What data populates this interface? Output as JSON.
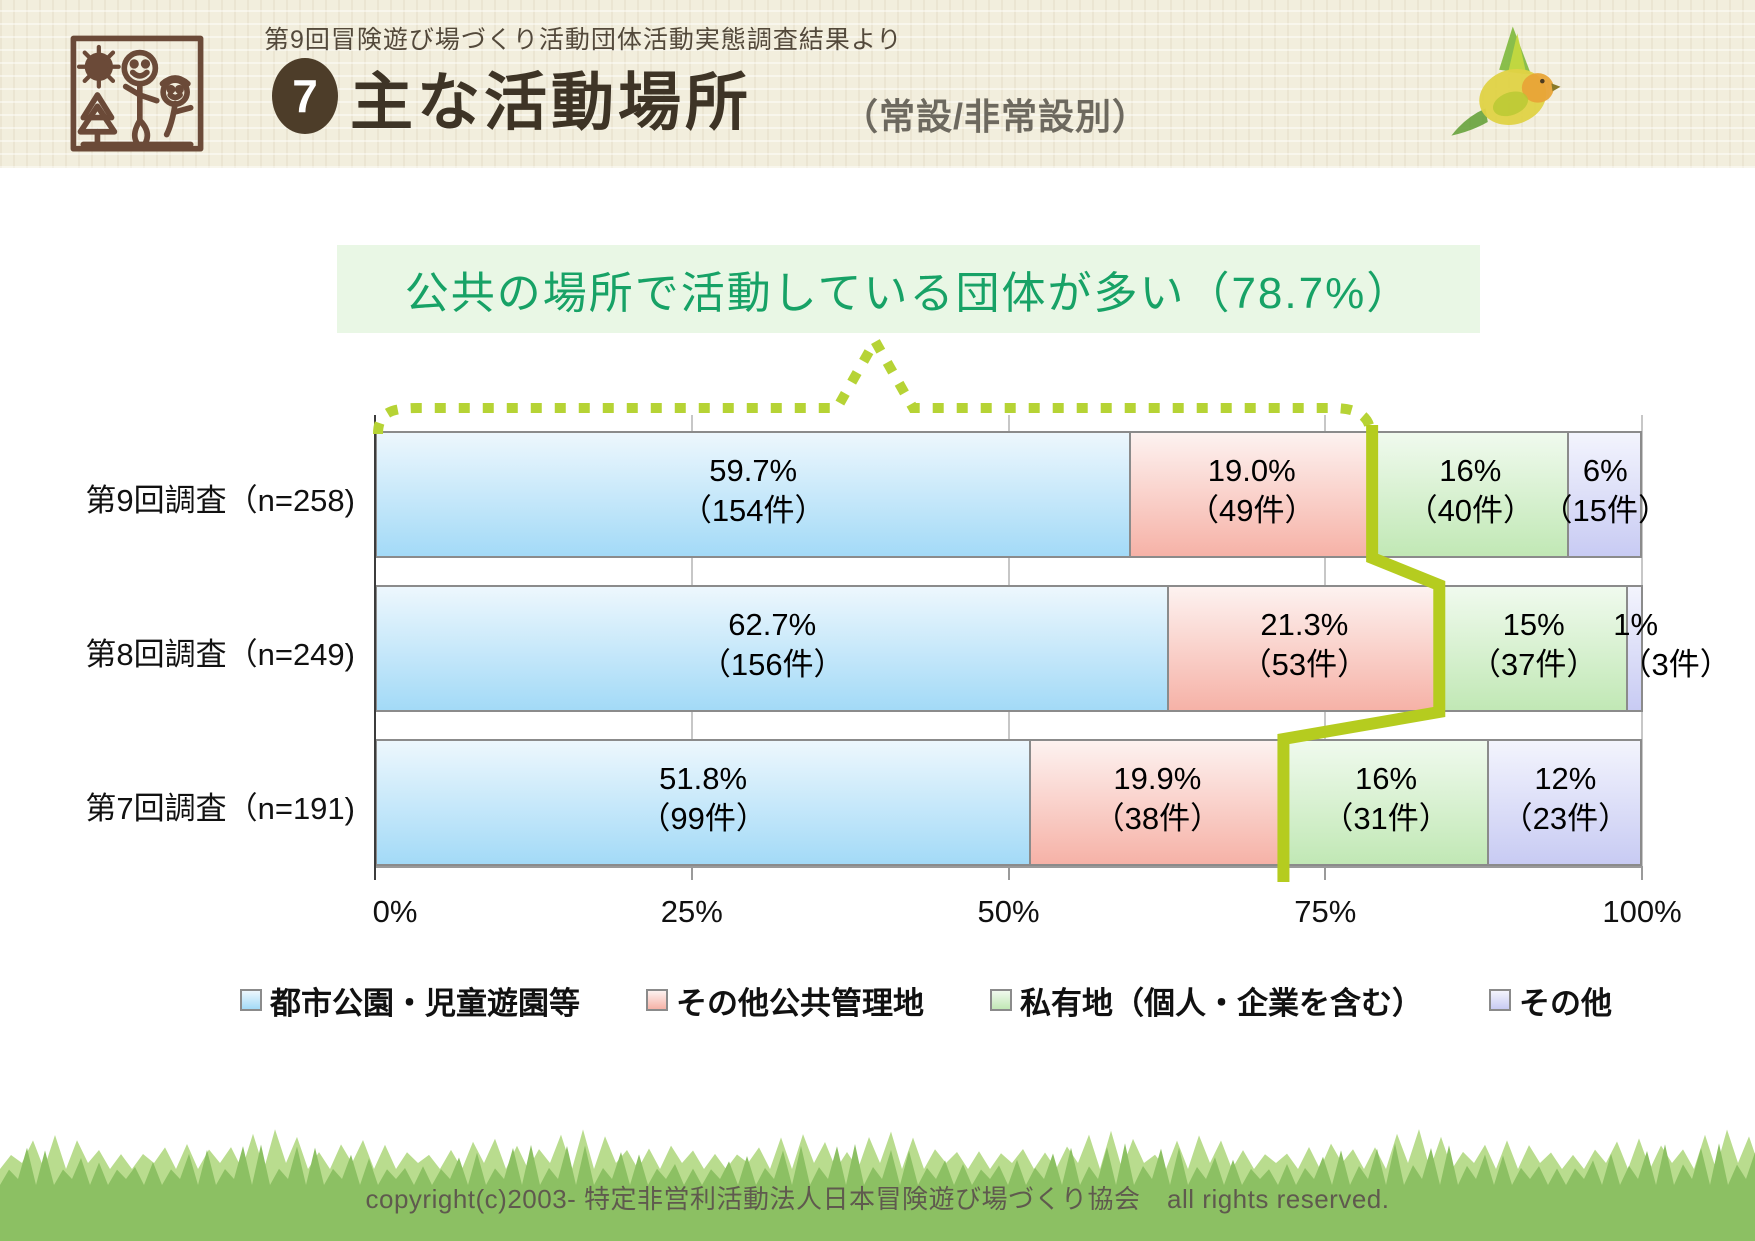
{
  "header": {
    "topnote": "第9回冒険遊び場づくり活動団体活動実態調査結果より",
    "badge": "7",
    "title": "主な活動場所",
    "subtitle": "（常設/非常設別）"
  },
  "callout": {
    "text": "公共の場所で活動している団体が多い（78.7%）"
  },
  "chart_data": {
    "type": "bar",
    "orientation": "horizontal",
    "stacked": true,
    "x_range": [
      0,
      100
    ],
    "x_ticks": [
      "0%",
      "25%",
      "50%",
      "75%",
      "100%"
    ],
    "gridlines": true,
    "legend_position": "bottom",
    "categories": [
      "第9回調査（n=258)",
      "第8回調査（n=249)",
      "第7回調査（n=191)"
    ],
    "series": [
      {
        "name": "都市公園・児童遊園等",
        "values": [
          59.7,
          62.7,
          51.8
        ],
        "counts": [
          154,
          156,
          99
        ],
        "percent_labels": [
          "59.7%",
          "62.7%",
          "51.8%"
        ],
        "count_labels": [
          "（154件）",
          "（156件）",
          "（99件）"
        ],
        "color_top": "#edf7fd",
        "color_bottom": "#a3daf7"
      },
      {
        "name": "その他公共管理地",
        "values": [
          19.0,
          21.3,
          19.9
        ],
        "counts": [
          49,
          53,
          38
        ],
        "percent_labels": [
          "19.0%",
          "21.3%",
          "19.9%"
        ],
        "count_labels": [
          "（49件）",
          "（53件）",
          "（38件）"
        ],
        "color_top": "#fdf2f0",
        "color_bottom": "#f6b2a7"
      },
      {
        "name": "私有地（個人・企業を含む）",
        "values": [
          15.5,
          14.9,
          16.2
        ],
        "counts": [
          40,
          37,
          31
        ],
        "percent_labels": [
          "16%",
          "15%",
          "16%"
        ],
        "count_labels": [
          "（40件）",
          "（37件）",
          "（31件）"
        ],
        "color_top": "#f0faee",
        "color_bottom": "#c1e8b5"
      },
      {
        "name": "その他",
        "values": [
          5.8,
          1.2,
          12.1
        ],
        "counts": [
          15,
          3,
          23
        ],
        "percent_labels": [
          "6%",
          "1%",
          "12%"
        ],
        "count_labels": [
          "（15件）",
          "（3件）",
          "（23件）"
        ],
        "color_top": "#f3f4fd",
        "color_bottom": "#c8cbf3"
      }
    ],
    "public_share_boundary_percent": [
      78.7,
      84.0,
      71.7
    ],
    "highlight_color": "#b5cc1f",
    "bracket_color": "#b6d335"
  },
  "footer": {
    "copyright": "copyright(c)2003- 特定非営利活動法人日本冒険遊び場づくり協会　all rights reserved."
  }
}
